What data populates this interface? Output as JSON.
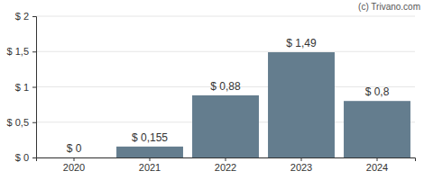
{
  "chart_data": {
    "type": "bar",
    "annotations": [
      "(c) Trivano.com"
    ],
    "categories": [
      "2020",
      "2021",
      "2022",
      "2023",
      "2024"
    ],
    "values": [
      0,
      0.155,
      0.88,
      1.49,
      0.8
    ],
    "value_labels": [
      "$ 0",
      "$ 0,155",
      "$ 0,88",
      "$ 1,49",
      "$ 0,8"
    ],
    "color": "#647d8e",
    "ylim": [
      0,
      2
    ],
    "yticks": [
      {
        "value": 0,
        "label": "$ 0"
      },
      {
        "value": 0.5,
        "label": "$ 0,5"
      },
      {
        "value": 1,
        "label": "$ 1"
      },
      {
        "value": 1.5,
        "label": "$ 1,5"
      },
      {
        "value": 2,
        "label": "$ 2"
      }
    ],
    "grid": true,
    "data_labels": true
  }
}
